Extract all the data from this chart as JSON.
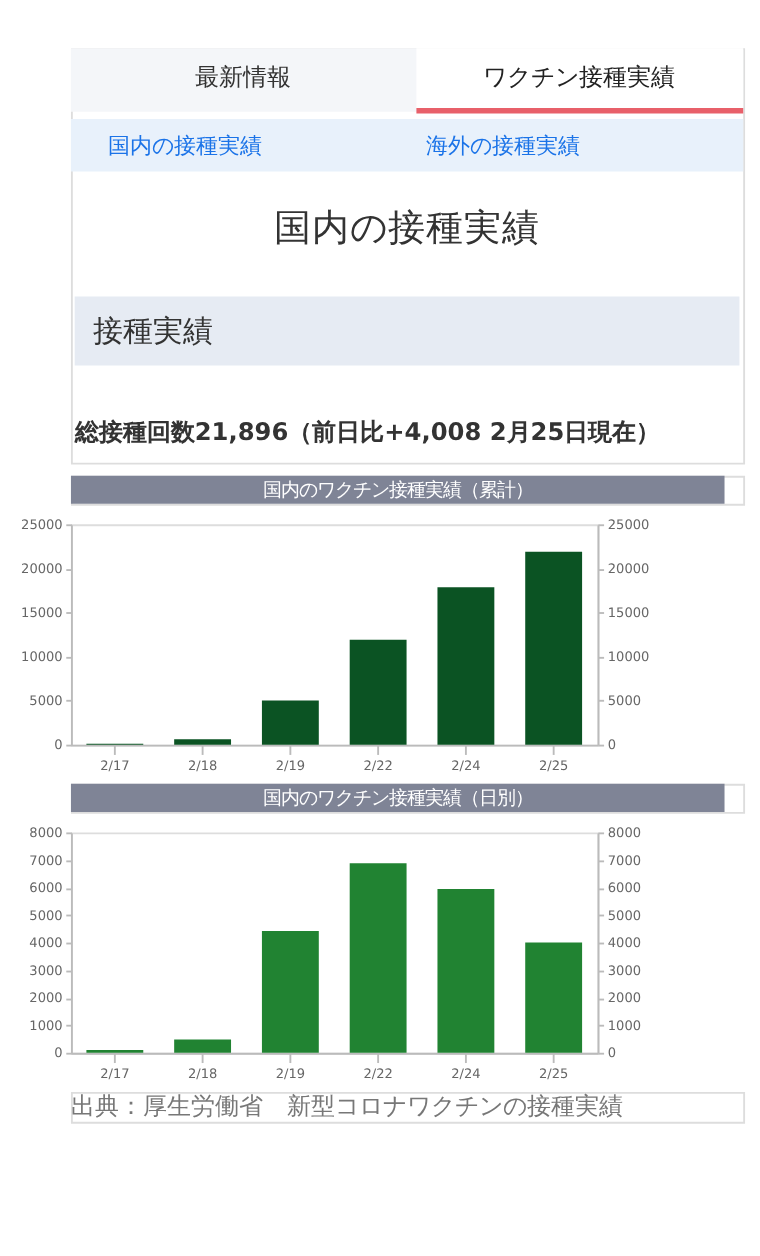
{
  "chart_data": [
    {
      "type": "bar",
      "title": "国内のワクチン接種実績（累計）",
      "annotations": [
        "最新情報",
        "ワクチン接種実績",
        "国内の接種実績",
        "海外の接種実績",
        "国内の接種実績",
        "接種実績",
        "総接種回数21,896（前日比+4,008 2月25日現在）"
      ],
      "categories": [
        "2/17",
        "2/18",
        "2/19",
        "2/22",
        "2/24",
        "2/25"
      ],
      "series": [
        {
          "color": "#0b5323",
          "values": [
            100,
            600,
            5000,
            11900,
            17850,
            21900
          ]
        }
      ],
      "ylim": [
        0,
        25000
      ],
      "yticks": [
        0,
        5000,
        10000,
        15000,
        20000,
        25000
      ],
      "y2lim": [
        0,
        25000
      ],
      "y2ticks": [
        0,
        5000,
        10000,
        15000,
        20000,
        25000
      ],
      "grid": false
    },
    {
      "type": "bar",
      "title": "国内のワクチン接種実績（日別）",
      "annotations": [
        "出典：厚生労働省　新型コロナワクチンの接種実績"
      ],
      "categories": [
        "2/17",
        "2/18",
        "2/19",
        "2/22",
        "2/24",
        "2/25"
      ],
      "series": [
        {
          "color": "#218332",
          "values": [
            100,
            480,
            4420,
            6880,
            5950,
            4000
          ]
        }
      ],
      "ylim": [
        0,
        8000
      ],
      "yticks": [
        0,
        1000,
        2000,
        3000,
        4000,
        5000,
        6000,
        7000,
        8000
      ],
      "y2lim": [
        0,
        8000
      ],
      "y2ticks": [
        0,
        1000,
        2000,
        3000,
        4000,
        5000,
        6000,
        7000,
        8000
      ],
      "grid": false
    }
  ]
}
